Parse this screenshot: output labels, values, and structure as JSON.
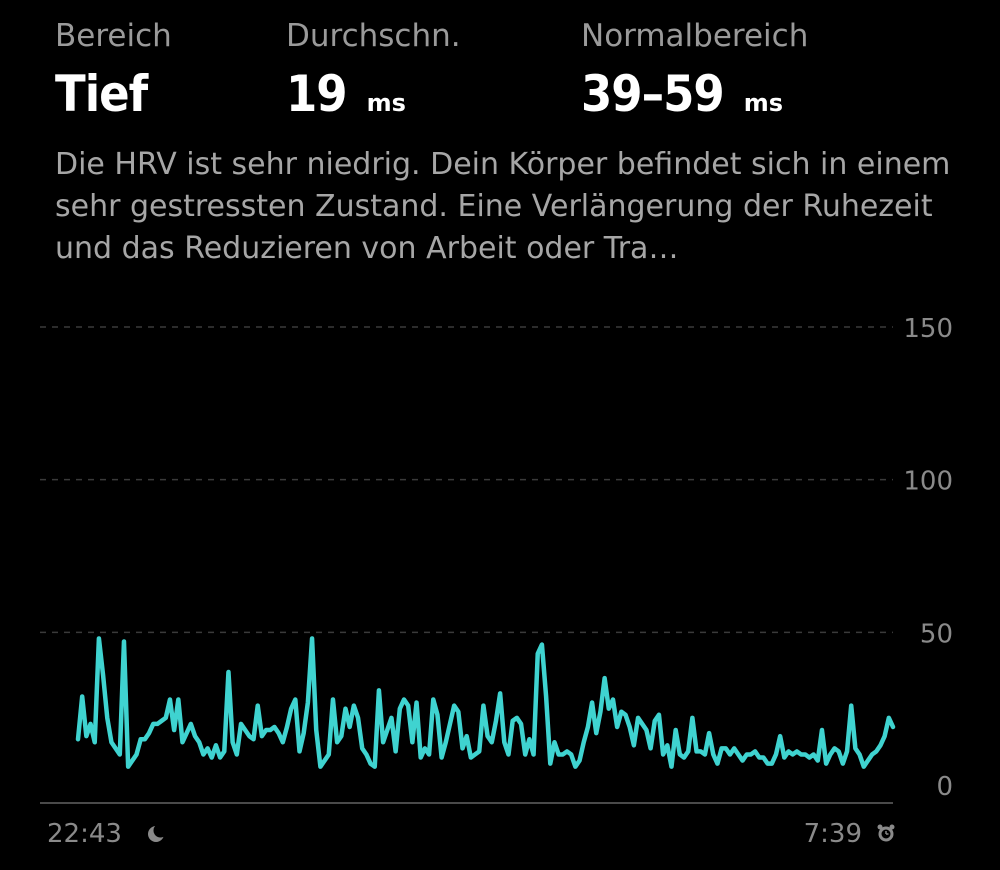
{
  "stats": [
    {
      "label": "Bereich",
      "value": "Tief",
      "unit": ""
    },
    {
      "label": "Durchschn.",
      "value": "19",
      "unit": "ms"
    },
    {
      "label": "Normalbereich",
      "value": "39–59",
      "unit": "ms"
    }
  ],
  "description": "Die HRV ist sehr niedrig. Dein Körper befindet sich in einem sehr gestressten Zustand. Eine Verlängerung der Ruhezeit und das Reduzieren von Arbeit oder Tra…",
  "colors": {
    "background": "#000000",
    "line": "#3fd3d0",
    "grid": "#3a3a3a",
    "label": "#8a8a8a"
  },
  "x_axis": {
    "start_label": "22:43",
    "start_icon": "moon-icon",
    "end_label": "7:39",
    "end_icon": "alarm-clock-icon"
  },
  "chart_data": {
    "type": "line",
    "title": "",
    "xlabel": "",
    "ylabel": "",
    "ylim": [
      0,
      150
    ],
    "yticks": [
      "0",
      "50",
      "100",
      "150"
    ],
    "grid": true,
    "x_range": [
      "22:43",
      "7:39"
    ],
    "series": [
      {
        "values": [
          15,
          29,
          16,
          20,
          14,
          48,
          36,
          22,
          14,
          12,
          10,
          47,
          6,
          8,
          10,
          15,
          15,
          17,
          20,
          20,
          21,
          22,
          28,
          18,
          28,
          14,
          17,
          20,
          16,
          14,
          10,
          12,
          9,
          13,
          9,
          11,
          37,
          14,
          10,
          20,
          18,
          16,
          15,
          26,
          16,
          18,
          18,
          19,
          17,
          14,
          19,
          25,
          28,
          11,
          17,
          27,
          48,
          18,
          6,
          8,
          10,
          28,
          14,
          16,
          25,
          19,
          26,
          22,
          12,
          10,
          7,
          6,
          31,
          14,
          18,
          22,
          11,
          25,
          28,
          26,
          14,
          27,
          9,
          12,
          10,
          28,
          23,
          9,
          14,
          20,
          26,
          24,
          12,
          16,
          9,
          10,
          11,
          26,
          16,
          14,
          21,
          30,
          14,
          10,
          21,
          22,
          20,
          10,
          15,
          10,
          43,
          46,
          29,
          7,
          14,
          10,
          10,
          11,
          10,
          6,
          8,
          14,
          19,
          27,
          17,
          24,
          35,
          25,
          28,
          19,
          24,
          23,
          19,
          13,
          22,
          20,
          18,
          12,
          21,
          23,
          10,
          13,
          6,
          18,
          10,
          9,
          11,
          22,
          11,
          11,
          10,
          17,
          10,
          7,
          12,
          12,
          10,
          12,
          10,
          8,
          10,
          10,
          11,
          9,
          9,
          7,
          7,
          10,
          16,
          9,
          11,
          10,
          11,
          10,
          10,
          9,
          10,
          8,
          18,
          7,
          10,
          12,
          11,
          7,
          11,
          26,
          12,
          10,
          6,
          8,
          10,
          11,
          13,
          16,
          22,
          19
        ]
      }
    ]
  }
}
